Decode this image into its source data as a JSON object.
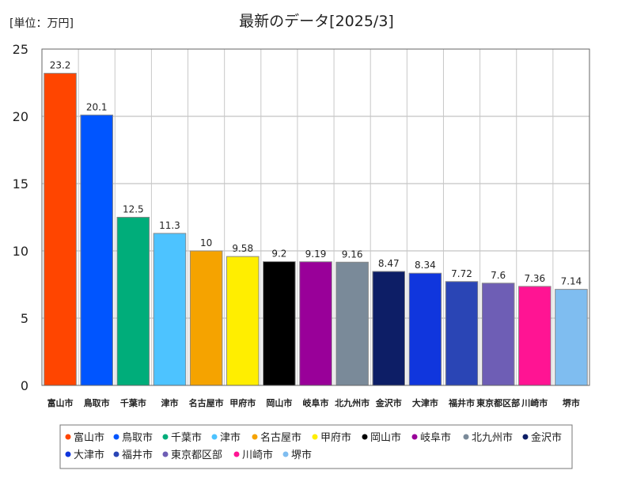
{
  "chart_data": {
    "type": "bar",
    "unit_label": "[単位：万円]",
    "title": "最新のデータ[2025/3]",
    "xlabel": "",
    "ylabel": "",
    "ylim": [
      0,
      25
    ],
    "yticks": [
      0,
      5,
      10,
      15,
      20,
      25
    ],
    "grid": true,
    "legend_position": "bottom",
    "categories": [
      "富山市",
      "鳥取市",
      "千葉市",
      "津市",
      "名古屋市",
      "甲府市",
      "岡山市",
      "岐阜市",
      "北九州市",
      "金沢市",
      "大津市",
      "福井市",
      "東京都区部",
      "川崎市",
      "堺市"
    ],
    "values": [
      23.2,
      20.1,
      12.5,
      11.3,
      10,
      9.58,
      9.2,
      9.19,
      9.16,
      8.47,
      8.34,
      7.72,
      7.6,
      7.36,
      7.14
    ],
    "value_labels": [
      "23.2",
      "20.1",
      "12.5",
      "11.3",
      "10",
      "9.58",
      "9.2",
      "9.19",
      "9.16",
      "8.47",
      "8.34",
      "7.72",
      "7.6",
      "7.36",
      "7.14"
    ],
    "colors": [
      "#ff4500",
      "#0055ff",
      "#00ad7a",
      "#4dc3ff",
      "#f5a300",
      "#ffee00",
      "#000000",
      "#990099",
      "#7a8a99",
      "#0d1e66",
      "#1036dd",
      "#2a45b5",
      "#6e5eb5",
      "#ff1493",
      "#7fbdf0"
    ]
  }
}
